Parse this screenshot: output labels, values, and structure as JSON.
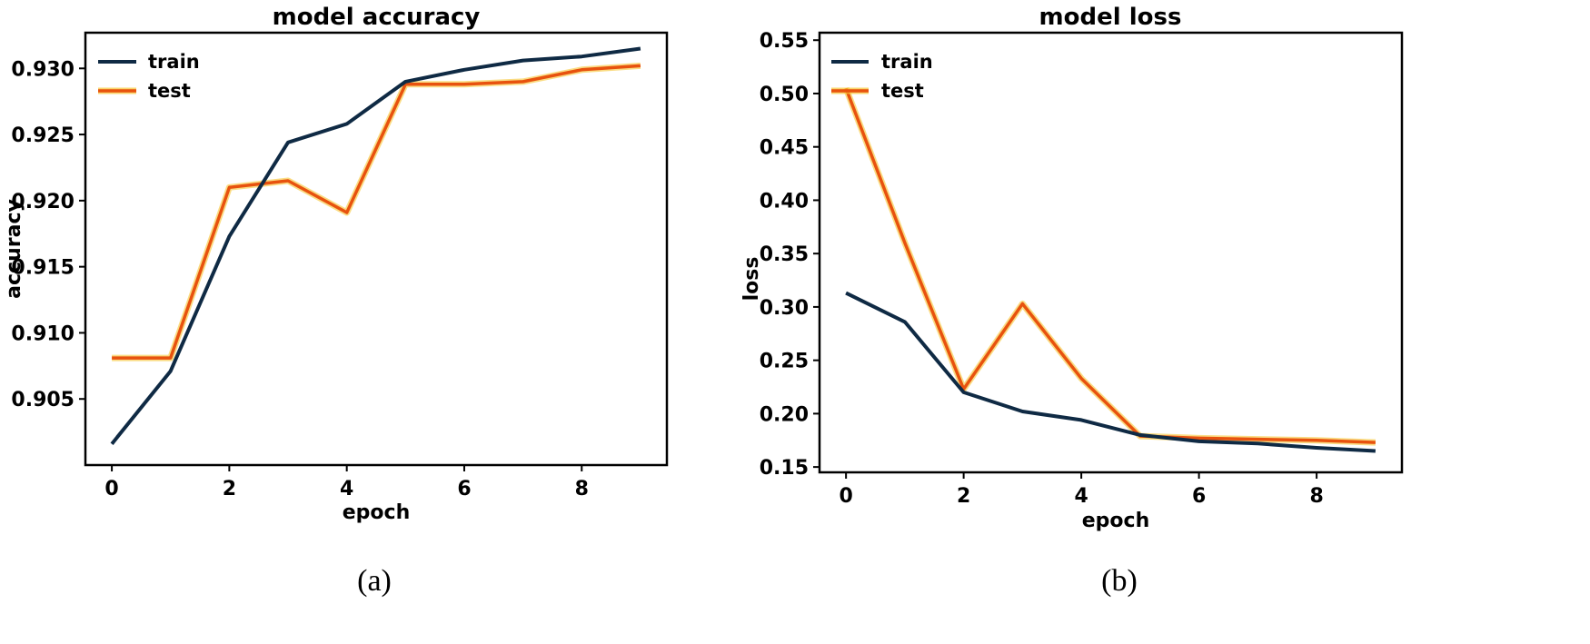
{
  "colors": {
    "train": "#0f2a44",
    "test": "#e8520e",
    "test_halo": "#f7c531"
  },
  "chart_data": [
    {
      "type": "line",
      "title": "model accuracy",
      "xlabel": "epoch",
      "ylabel": "accuracy",
      "caption": "(a)",
      "xlim": [
        -0.45,
        9.45
      ],
      "ylim": [
        0.9,
        0.9327
      ],
      "xticks": [
        0,
        2,
        4,
        6,
        8
      ],
      "yticks": [
        0.905,
        0.91,
        0.915,
        0.92,
        0.925,
        0.93
      ],
      "ytick_labels": [
        "0.905",
        "0.910",
        "0.915",
        "0.920",
        "0.925",
        "0.930"
      ],
      "grid": false,
      "legend_position": "top-left",
      "x": [
        0,
        1,
        2,
        3,
        4,
        5,
        6,
        7,
        8,
        9
      ],
      "series": [
        {
          "name": "train",
          "values": [
            0.9016,
            0.9071,
            0.9173,
            0.9244,
            0.9258,
            0.929,
            0.9299,
            0.9306,
            0.9309,
            0.9315
          ]
        },
        {
          "name": "test",
          "values": [
            0.9081,
            0.9081,
            0.921,
            0.9215,
            0.9191,
            0.9288,
            0.9288,
            0.929,
            0.9299,
            0.9302
          ]
        }
      ]
    },
    {
      "type": "line",
      "title": "model loss",
      "xlabel": "epoch",
      "ylabel": "loss",
      "caption": "(b)",
      "xlim": [
        -0.45,
        9.45
      ],
      "ylim": [
        0.145,
        0.557
      ],
      "xticks": [
        0,
        2,
        4,
        6,
        8
      ],
      "yticks": [
        0.15,
        0.2,
        0.25,
        0.3,
        0.35,
        0.4,
        0.45,
        0.5,
        0.55
      ],
      "ytick_labels": [
        "0.15",
        "0.20",
        "0.25",
        "0.30",
        "0.35",
        "0.40",
        "0.45",
        "0.50",
        "0.55"
      ],
      "grid": false,
      "legend_position": "top-left",
      "x": [
        0,
        1,
        2,
        3,
        4,
        5,
        6,
        7,
        8,
        9
      ],
      "series": [
        {
          "name": "train",
          "values": [
            0.313,
            0.286,
            0.22,
            0.202,
            0.194,
            0.18,
            0.174,
            0.172,
            0.168,
            0.165
          ]
        },
        {
          "name": "test",
          "values": [
            0.505,
            0.36,
            0.223,
            0.303,
            0.233,
            0.179,
            0.177,
            0.176,
            0.175,
            0.173
          ]
        }
      ]
    }
  ]
}
